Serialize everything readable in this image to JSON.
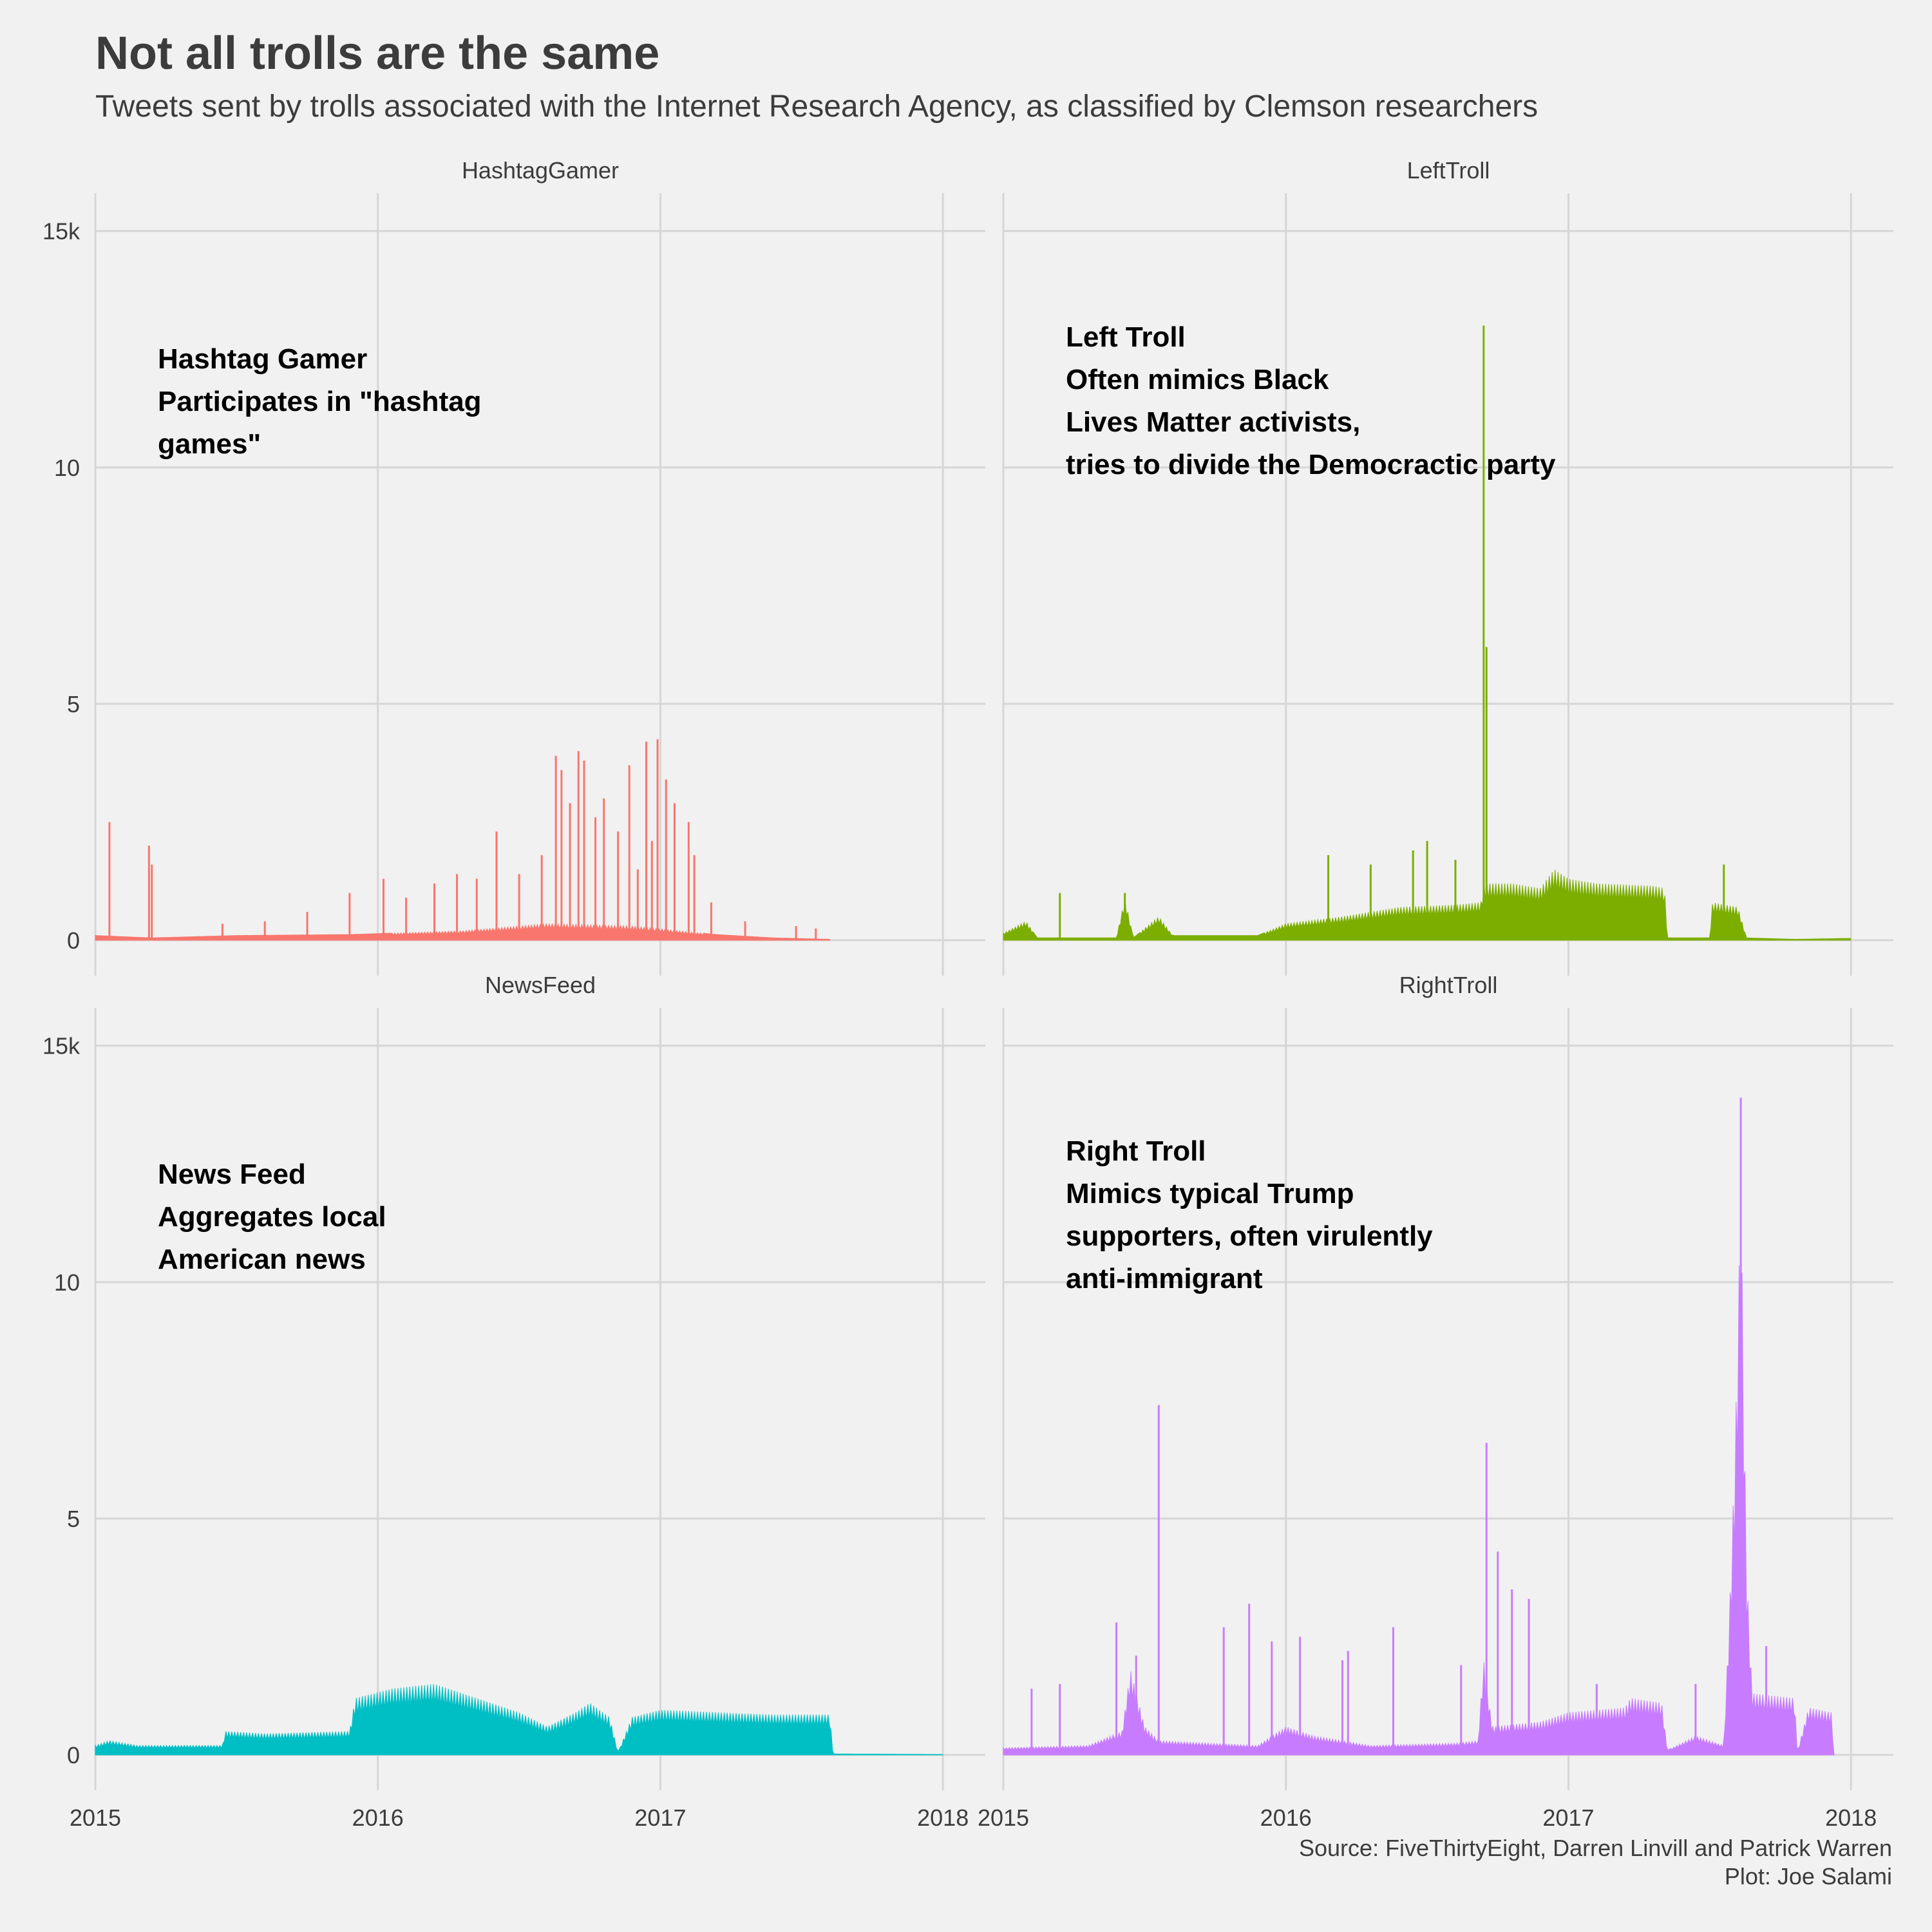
{
  "title": "Not all trolls are the same",
  "subtitle": "Tweets sent by trolls associated with the Internet Research Agency, as classified by Clemson researchers",
  "caption": [
    "Source: FiveThirtyEight, Darren Linvill and Patrick Warren",
    "Plot: Joe Salami"
  ],
  "chart_data": {
    "type": "area",
    "facet_layout": "2x2",
    "x_ticks": [
      "2015",
      "2016",
      "2017",
      "2018"
    ],
    "x_range": [
      2015.0,
      2018.15
    ],
    "y_ticks": [
      "0",
      "5",
      "10",
      "15k"
    ],
    "y_range": [
      0,
      15.8
    ],
    "y_unit": "thousand tweets per day",
    "grid": true,
    "legend": "none",
    "panels": [
      {
        "name": "HashtagGamer",
        "color": "#F8766D",
        "annotation": [
          "Hashtag Gamer",
          "Participates in \"hashtag",
          "games\""
        ],
        "baseline": [
          [
            2015.0,
            0.1
          ],
          [
            2015.2,
            0.05
          ],
          [
            2015.5,
            0.1
          ],
          [
            2015.9,
            0.12
          ],
          [
            2016.3,
            0.2
          ],
          [
            2016.6,
            0.35
          ],
          [
            2016.9,
            0.3
          ],
          [
            2017.2,
            0.12
          ],
          [
            2017.4,
            0.05
          ],
          [
            2017.6,
            0.02
          ]
        ],
        "spikes": [
          [
            2015.05,
            2.5
          ],
          [
            2015.19,
            2.0
          ],
          [
            2015.2,
            1.6
          ],
          [
            2015.45,
            0.35
          ],
          [
            2015.6,
            0.4
          ],
          [
            2015.75,
            0.6
          ],
          [
            2015.9,
            1.0
          ],
          [
            2016.02,
            1.3
          ],
          [
            2016.1,
            0.9
          ],
          [
            2016.2,
            1.2
          ],
          [
            2016.28,
            1.4
          ],
          [
            2016.35,
            1.3
          ],
          [
            2016.42,
            2.3
          ],
          [
            2016.5,
            1.4
          ],
          [
            2016.58,
            1.8
          ],
          [
            2016.63,
            3.9
          ],
          [
            2016.65,
            3.6
          ],
          [
            2016.68,
            2.9
          ],
          [
            2016.71,
            4.0
          ],
          [
            2016.73,
            3.8
          ],
          [
            2016.77,
            2.6
          ],
          [
            2016.8,
            3.0
          ],
          [
            2016.85,
            2.3
          ],
          [
            2016.89,
            3.7
          ],
          [
            2016.92,
            1.5
          ],
          [
            2016.95,
            4.2
          ],
          [
            2016.97,
            2.1
          ],
          [
            2016.99,
            4.25
          ],
          [
            2017.02,
            3.4
          ],
          [
            2017.05,
            2.9
          ],
          [
            2017.1,
            2.5
          ],
          [
            2017.12,
            1.8
          ],
          [
            2017.18,
            0.8
          ],
          [
            2017.3,
            0.4
          ],
          [
            2017.48,
            0.3
          ],
          [
            2017.55,
            0.25
          ]
        ]
      },
      {
        "name": "LeftTroll",
        "color": "#7CAE00",
        "annotation": [
          "Left Troll",
          "Often mimics Black",
          "Lives Matter activists,",
          "tries to divide the Democractic party"
        ],
        "baseline": [
          [
            2015.0,
            0.15
          ],
          [
            2015.08,
            0.4
          ],
          [
            2015.12,
            0.05
          ],
          [
            2015.4,
            0.05
          ],
          [
            2015.43,
            0.9
          ],
          [
            2015.46,
            0.05
          ],
          [
            2015.55,
            0.5
          ],
          [
            2015.6,
            0.1
          ],
          [
            2015.9,
            0.1
          ],
          [
            2016.0,
            0.35
          ],
          [
            2016.2,
            0.5
          ],
          [
            2016.4,
            0.7
          ],
          [
            2016.6,
            0.75
          ],
          [
            2016.69,
            0.8
          ],
          [
            2016.7,
            1.2
          ],
          [
            2016.8,
            1.2
          ],
          [
            2016.9,
            1.1
          ],
          [
            2016.95,
            1.5
          ],
          [
            2017.0,
            1.3
          ],
          [
            2017.1,
            1.2
          ],
          [
            2017.3,
            1.15
          ],
          [
            2017.34,
            1.1
          ],
          [
            2017.35,
            0.05
          ],
          [
            2017.5,
            0.05
          ],
          [
            2017.51,
            0.8
          ],
          [
            2017.6,
            0.7
          ],
          [
            2017.63,
            0.05
          ],
          [
            2017.8,
            0.02
          ],
          [
            2018.0,
            0.04
          ]
        ],
        "spikes": [
          [
            2015.2,
            1.0
          ],
          [
            2015.43,
            1.0
          ],
          [
            2016.15,
            1.8
          ],
          [
            2016.3,
            1.6
          ],
          [
            2016.45,
            1.9
          ],
          [
            2016.5,
            2.1
          ],
          [
            2016.6,
            1.7
          ],
          [
            2016.7,
            13.0
          ],
          [
            2016.71,
            6.2
          ],
          [
            2017.55,
            1.6
          ]
        ]
      },
      {
        "name": "NewsFeed",
        "color": "#00BFC4",
        "annotation": [
          "News Feed",
          "Aggregates local",
          "American news"
        ],
        "baseline": [
          [
            2015.0,
            0.2
          ],
          [
            2015.05,
            0.3
          ],
          [
            2015.15,
            0.2
          ],
          [
            2015.45,
            0.2
          ],
          [
            2015.46,
            0.5
          ],
          [
            2015.6,
            0.45
          ],
          [
            2015.9,
            0.5
          ],
          [
            2015.92,
            1.2
          ],
          [
            2016.05,
            1.4
          ],
          [
            2016.2,
            1.5
          ],
          [
            2016.35,
            1.2
          ],
          [
            2016.5,
            0.9
          ],
          [
            2016.6,
            0.6
          ],
          [
            2016.7,
            0.9
          ],
          [
            2016.75,
            1.1
          ],
          [
            2016.82,
            0.8
          ],
          [
            2016.85,
            0.05
          ],
          [
            2016.9,
            0.8
          ],
          [
            2017.0,
            0.95
          ],
          [
            2017.2,
            0.9
          ],
          [
            2017.4,
            0.85
          ],
          [
            2017.6,
            0.85
          ],
          [
            2017.61,
            0.02
          ],
          [
            2018.0,
            0.01
          ]
        ],
        "spikes": []
      },
      {
        "name": "RightTroll",
        "color": "#C77CFF",
        "annotation": [
          "Right Troll",
          "Mimics typical Trump",
          "supporters, often virulently",
          "anti-immigrant"
        ],
        "baseline": [
          [
            2015.0,
            0.15
          ],
          [
            2015.3,
            0.2
          ],
          [
            2015.42,
            0.5
          ],
          [
            2015.45,
            1.8
          ],
          [
            2015.5,
            0.6
          ],
          [
            2015.55,
            0.3
          ],
          [
            2015.9,
            0.2
          ],
          [
            2016.0,
            0.6
          ],
          [
            2016.1,
            0.4
          ],
          [
            2016.3,
            0.2
          ],
          [
            2016.6,
            0.25
          ],
          [
            2016.68,
            0.3
          ],
          [
            2016.7,
            2.0
          ],
          [
            2016.73,
            0.6
          ],
          [
            2016.9,
            0.7
          ],
          [
            2017.0,
            0.9
          ],
          [
            2017.2,
            1.0
          ],
          [
            2017.22,
            1.2
          ],
          [
            2017.33,
            1.1
          ],
          [
            2017.35,
            0.1
          ],
          [
            2017.45,
            0.4
          ],
          [
            2017.55,
            0.2
          ],
          [
            2017.57,
            3.0
          ],
          [
            2017.59,
            6.5
          ],
          [
            2017.61,
            12.0
          ],
          [
            2017.63,
            4.0
          ],
          [
            2017.65,
            1.3
          ],
          [
            2017.8,
            1.2
          ],
          [
            2017.81,
            0.05
          ],
          [
            2017.85,
            1.0
          ],
          [
            2017.93,
            0.9
          ],
          [
            2017.94,
            0.02
          ]
        ],
        "spikes": [
          [
            2015.1,
            1.4
          ],
          [
            2015.2,
            1.5
          ],
          [
            2015.4,
            2.8
          ],
          [
            2015.47,
            2.1
          ],
          [
            2015.55,
            7.4
          ],
          [
            2015.78,
            2.7
          ],
          [
            2015.87,
            3.2
          ],
          [
            2015.95,
            2.4
          ],
          [
            2016.05,
            2.5
          ],
          [
            2016.2,
            2.0
          ],
          [
            2016.22,
            2.2
          ],
          [
            2016.38,
            2.7
          ],
          [
            2016.62,
            1.9
          ],
          [
            2016.71,
            6.6
          ],
          [
            2016.75,
            4.3
          ],
          [
            2016.8,
            3.5
          ],
          [
            2016.86,
            3.3
          ],
          [
            2017.1,
            1.5
          ],
          [
            2017.45,
            1.5
          ],
          [
            2017.61,
            13.9
          ],
          [
            2017.7,
            2.3
          ]
        ]
      }
    ]
  }
}
